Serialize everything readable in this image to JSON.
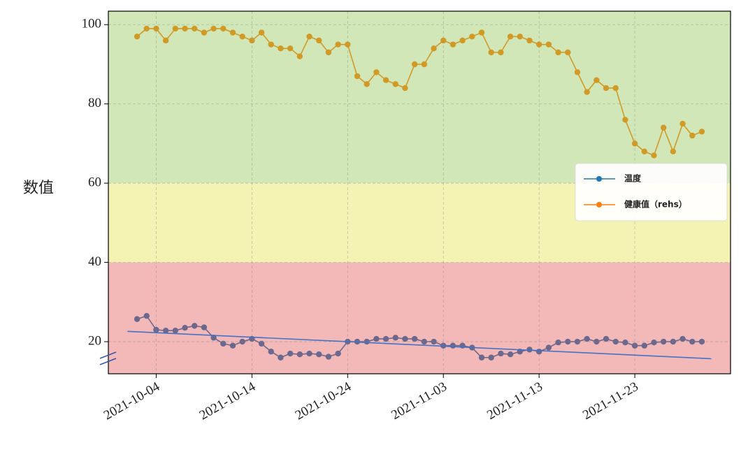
{
  "chart_data": {
    "type": "line",
    "ylabel": "数值",
    "x": [
      "2021-10-02",
      "2021-10-03",
      "2021-10-04",
      "2021-10-05",
      "2021-10-06",
      "2021-10-07",
      "2021-10-08",
      "2021-10-09",
      "2021-10-10",
      "2021-10-11",
      "2021-10-12",
      "2021-10-13",
      "2021-10-14",
      "2021-10-15",
      "2021-10-16",
      "2021-10-17",
      "2021-10-18",
      "2021-10-19",
      "2021-10-20",
      "2021-10-21",
      "2021-10-22",
      "2021-10-23",
      "2021-10-24",
      "2021-10-25",
      "2021-10-26",
      "2021-10-27",
      "2021-10-28",
      "2021-10-29",
      "2021-10-30",
      "2021-10-31",
      "2021-11-01",
      "2021-11-02",
      "2021-11-03",
      "2021-11-04",
      "2021-11-05",
      "2021-11-06",
      "2021-11-07",
      "2021-11-08",
      "2021-11-09",
      "2021-11-10",
      "2021-11-11",
      "2021-11-12",
      "2021-11-13",
      "2021-11-14",
      "2021-11-15",
      "2021-11-16",
      "2021-11-17",
      "2021-11-18",
      "2021-11-19",
      "2021-11-20",
      "2021-11-21",
      "2021-11-22",
      "2021-11-23",
      "2021-11-24",
      "2021-11-25",
      "2021-11-26",
      "2021-11-27",
      "2021-11-28",
      "2021-11-29",
      "2021-11-30"
    ],
    "series": [
      {
        "name": "温度",
        "color": "#1f77b4",
        "values": [
          25.7,
          26.5,
          23,
          22.8,
          22.8,
          23.5,
          24,
          23.6,
          21,
          19.5,
          19,
          20,
          20.7,
          19.5,
          17.5,
          16,
          17,
          16.8,
          17,
          16.8,
          16.2,
          17,
          20,
          20,
          20,
          20.7,
          20.7,
          21,
          20.7,
          20.7,
          20,
          20,
          19,
          19,
          19,
          18.5,
          16,
          16,
          17,
          16.8,
          17.5,
          18,
          17.5,
          18.5,
          19.8,
          20,
          20,
          20.7,
          20,
          20.7,
          20,
          19.8,
          19,
          19,
          19.8,
          20,
          20,
          20.7,
          20,
          20
        ]
      },
      {
        "name": "健康值（rehs）",
        "color": "#ff7f0e",
        "values": [
          97,
          99,
          99,
          96,
          99,
          99,
          99,
          98,
          99,
          99,
          98,
          97,
          96,
          98,
          95,
          94,
          94,
          92,
          97,
          96,
          93,
          95,
          95,
          87,
          85,
          88,
          86,
          85,
          84,
          90,
          90,
          94,
          96,
          95,
          96,
          97,
          98,
          93,
          93,
          97,
          97,
          96,
          95,
          95,
          93,
          93,
          88,
          83,
          86,
          84,
          84,
          76,
          70,
          68,
          67,
          74,
          68,
          75,
          72,
          73
        ]
      }
    ],
    "trend": {
      "color": "#4472c4",
      "x": [
        "2021-10-01",
        "2021-12-01"
      ],
      "values": [
        22.6,
        15.7
      ]
    },
    "bands": [
      {
        "range": [
          60,
          103.4
        ],
        "color": "#8bc34a"
      },
      {
        "range": [
          40,
          60
        ],
        "color": "#e6e040"
      },
      {
        "range": [
          11.9,
          40
        ],
        "color": "#e05050"
      }
    ],
    "band_alpha": 0.4,
    "xlim": [
      "2021-09-29",
      "2021-12-03"
    ],
    "xticks": [
      "2021-10-04",
      "2021-10-14",
      "2021-10-24",
      "2021-11-03",
      "2021-11-13",
      "2021-11-23"
    ],
    "ylim": [
      11.9,
      103.4
    ],
    "yticks": [
      20,
      40,
      60,
      80,
      100
    ],
    "grid": true,
    "legend": "right"
  }
}
